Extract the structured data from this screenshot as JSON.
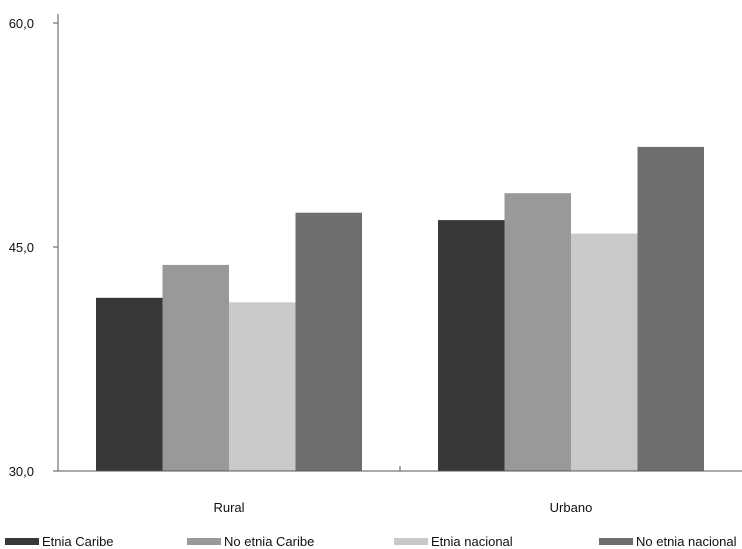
{
  "chart_data": {
    "type": "bar",
    "categories": [
      "Rural",
      "Urbano"
    ],
    "series": [
      {
        "name": "Etnia Caribe",
        "values": [
          41.6,
          46.8
        ],
        "color": "#383838"
      },
      {
        "name": "No etnia Caribe",
        "values": [
          43.8,
          48.6
        ],
        "color": "#999999"
      },
      {
        "name": "Etnia nacional",
        "values": [
          41.3,
          45.9
        ],
        "color": "#c9c9c9"
      },
      {
        "name": "No etnia nacional",
        "values": [
          47.3,
          51.7
        ],
        "color": "#6e6e6e"
      }
    ],
    "yticks": [
      "30,0",
      "45,0",
      "60,0"
    ],
    "ytick_values": [
      30,
      45,
      60
    ],
    "ylim": [
      30,
      60
    ],
    "grid": false,
    "legend_position": "bottom"
  }
}
